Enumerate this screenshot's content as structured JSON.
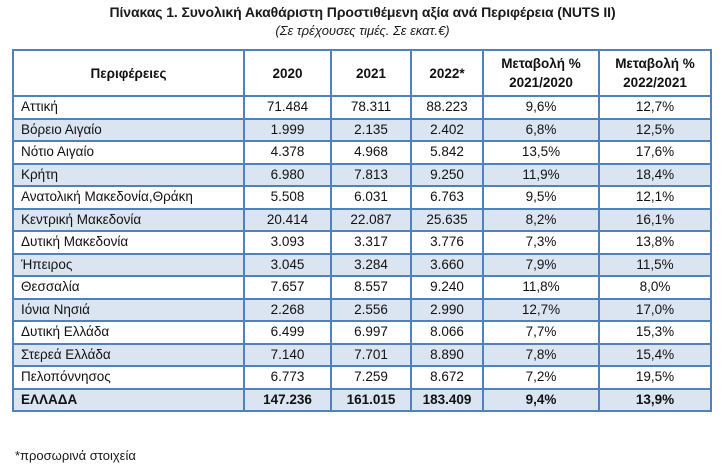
{
  "title": "Πίνακας 1. Συνολική Ακαθάριστη Προστιθέμενη αξία ανά  Περιφέρεια (NUTS II)",
  "subtitle": "(Σε τρέχουσες τιμές. Σε εκατ.€)",
  "colors": {
    "border": "#4f81bd",
    "shaded_row": "#dbe5f1"
  },
  "table": {
    "headers": {
      "region": "Περιφέρειες",
      "y2020": "2020",
      "y2021": "2021",
      "y2022": "2022*",
      "change1_line1": "Μεταβολή %",
      "change1_line2": "2021/2020",
      "change2_line1": "Μεταβολή %",
      "change2_line2": "2022/2021"
    },
    "rows": [
      {
        "region": "Αττική",
        "y2020": "71.484",
        "y2021": "78.311",
        "y2022": "88.223",
        "ch1": "9,6%",
        "ch2": "12,7%"
      },
      {
        "region": "Βόρειο Αιγαίο",
        "y2020": "1.999",
        "y2021": "2.135",
        "y2022": "2.402",
        "ch1": "6,8%",
        "ch2": "12,5%"
      },
      {
        "region": "Νότιο Αιγαίο",
        "y2020": "4.378",
        "y2021": "4.968",
        "y2022": "5.842",
        "ch1": "13,5%",
        "ch2": "17,6%"
      },
      {
        "region": "Κρήτη",
        "y2020": "6.980",
        "y2021": "7.813",
        "y2022": "9.250",
        "ch1": "11,9%",
        "ch2": "18,4%"
      },
      {
        "region": "Ανατολική Μακεδονία,Θράκη",
        "y2020": "5.508",
        "y2021": "6.031",
        "y2022": "6.763",
        "ch1": "9,5%",
        "ch2": "12,1%"
      },
      {
        "region": "Κεντρική Μακεδονία",
        "y2020": "20.414",
        "y2021": "22.087",
        "y2022": "25.635",
        "ch1": "8,2%",
        "ch2": "16,1%"
      },
      {
        "region": "Δυτική Μακεδονία",
        "y2020": "3.093",
        "y2021": "3.317",
        "y2022": "3.776",
        "ch1": "7,3%",
        "ch2": "13,8%"
      },
      {
        "region": "Ήπειρος",
        "y2020": "3.045",
        "y2021": "3.284",
        "y2022": "3.660",
        "ch1": "7,9%",
        "ch2": "11,5%"
      },
      {
        "region": "Θεσσαλία",
        "y2020": "7.657",
        "y2021": "8.557",
        "y2022": "9.240",
        "ch1": "11,8%",
        "ch2": "8,0%"
      },
      {
        "region": "Ιόνια Νησιά",
        "y2020": "2.268",
        "y2021": "2.556",
        "y2022": "2.990",
        "ch1": "12,7%",
        "ch2": "17,0%"
      },
      {
        "region": "Δυτική Ελλάδα",
        "y2020": "6.499",
        "y2021": "6.997",
        "y2022": "8.066",
        "ch1": "7,7%",
        "ch2": "15,3%"
      },
      {
        "region": "Στερεά Ελλάδα",
        "y2020": "7.140",
        "y2021": "7.701",
        "y2022": "8.890",
        "ch1": "7,8%",
        "ch2": "15,4%"
      },
      {
        "region": "Πελοπόννησος",
        "y2020": "6.773",
        "y2021": "7.259",
        "y2022": "8.672",
        "ch1": "7,2%",
        "ch2": "19,5%"
      }
    ],
    "total": {
      "region": "ΕΛΛΑΔΑ",
      "y2020": "147.236",
      "y2021": "161.015",
      "y2022": "183.409",
      "ch1": "9,4%",
      "ch2": "13,9%"
    }
  },
  "footnote": "*προσωρινά στοιχεία"
}
